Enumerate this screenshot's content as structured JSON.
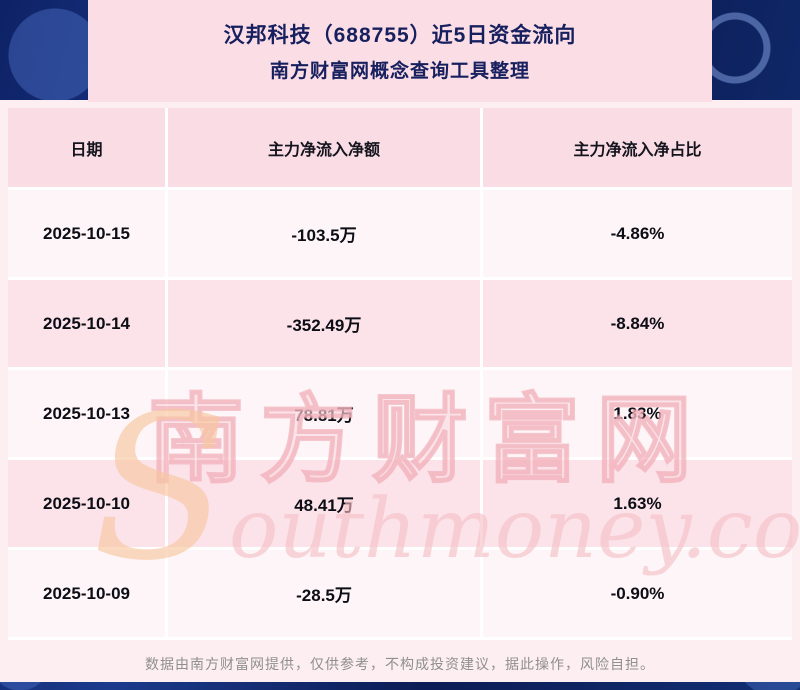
{
  "header": {
    "title_line1": "汉邦科技（688755）近5日资金流向",
    "title_line2": "南方财富网概念查询工具整理"
  },
  "chart_data": {
    "type": "table",
    "title": "汉邦科技（688755）近5日资金流向",
    "subtitle": "南方财富网概念查询工具整理",
    "columns": [
      "日期",
      "主力净流入净额",
      "主力净流入净占比"
    ],
    "rows": [
      {
        "date": "2025-10-15",
        "net_inflow": "-103.5万",
        "net_inflow_pct": "-4.86%"
      },
      {
        "date": "2025-10-14",
        "net_inflow": "-352.49万",
        "net_inflow_pct": "-8.84%"
      },
      {
        "date": "2025-10-13",
        "net_inflow": "78.81万",
        "net_inflow_pct": "1.83%"
      },
      {
        "date": "2025-10-10",
        "net_inflow": "48.41万",
        "net_inflow_pct": "1.63%"
      },
      {
        "date": "2025-10-09",
        "net_inflow": "-28.5万",
        "net_inflow_pct": "-0.90%"
      }
    ]
  },
  "watermark": {
    "cn": "南方财富网",
    "en": "Southmoney.com"
  },
  "footer": {
    "disclaimer": "数据由南方财富网提供，仅供参考，不构成投资建议，据此操作，风险自担。"
  },
  "colors": {
    "title_navy": "#17205f",
    "panel_pink": "#fdeef2",
    "title_panel_pink": "#fbdde5",
    "header_row_pink": "#f9dce4",
    "row_alt_pink": "#fbe3e9",
    "row_light": "#fdf5f7",
    "background_blue": "#0c1c55",
    "watermark_pink": "#f3bac3",
    "footer_gray": "#8f8f8f"
  }
}
